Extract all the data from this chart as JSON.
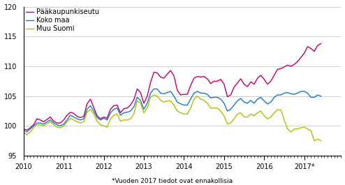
{
  "footnote": "*Vuoden 2017 tiedot ovat ennakollisia",
  "legend": [
    "Pääkaupunkiseutu",
    "Koko maa",
    "Muu Suomi"
  ],
  "colors": [
    "#c0006e",
    "#1a7abf",
    "#b0c000"
  ],
  "ylim": [
    95,
    120
  ],
  "yticks": [
    95,
    100,
    105,
    110,
    115,
    120
  ],
  "xlim_start": 2010.0,
  "xlim_end": 2017.92,
  "xtick_labels": [
    "2010",
    "2011",
    "2012",
    "2013",
    "2014",
    "2015",
    "2016",
    "2017*"
  ],
  "xtick_positions": [
    2010.0,
    2011.0,
    2012.0,
    2013.0,
    2014.0,
    2015.0,
    2016.0,
    2017.0
  ],
  "line_width": 1.0,
  "background_color": "#ffffff",
  "grid_color": "#c8c8c8",
  "paakaupunkiseutu": [
    99.5,
    99.3,
    99.7,
    100.2,
    101.2,
    101.0,
    100.7,
    101.1,
    101.5,
    100.8,
    100.5,
    100.5,
    101.0,
    101.8,
    102.3,
    102.1,
    101.6,
    101.4,
    101.6,
    103.7,
    104.5,
    103.1,
    101.7,
    101.2,
    101.5,
    101.3,
    102.8,
    103.4,
    103.5,
    102.2,
    102.9,
    103.0,
    103.5,
    104.4,
    106.2,
    105.6,
    103.8,
    105.0,
    107.3,
    109.0,
    108.9,
    108.2,
    108.0,
    108.7,
    109.3,
    108.4,
    106.0,
    105.2,
    105.3,
    105.3,
    106.8,
    108.0,
    108.3,
    108.2,
    108.3,
    107.9,
    107.1,
    107.5,
    107.5,
    107.8,
    107.0,
    104.9,
    105.2,
    106.5,
    107.2,
    107.9,
    107.0,
    106.6,
    107.4,
    107.0,
    108.0,
    108.5,
    107.8,
    107.0,
    107.5,
    108.5,
    109.5,
    109.6,
    109.9,
    110.2,
    110.0,
    110.3,
    110.8,
    111.5,
    112.2,
    113.3,
    113.0,
    112.5,
    113.5,
    113.8
  ],
  "koko_maa": [
    99.3,
    99.0,
    99.5,
    100.0,
    100.5,
    100.5,
    100.3,
    100.7,
    101.0,
    100.5,
    100.2,
    100.0,
    100.3,
    101.0,
    101.8,
    101.5,
    101.2,
    101.0,
    101.2,
    102.8,
    103.4,
    102.5,
    101.4,
    101.0,
    101.3,
    101.0,
    102.2,
    102.8,
    103.0,
    101.8,
    102.2,
    102.3,
    102.5,
    103.2,
    104.8,
    104.3,
    102.8,
    103.8,
    105.5,
    106.2,
    106.2,
    105.5,
    105.4,
    105.6,
    105.8,
    105.0,
    104.0,
    103.7,
    103.5,
    103.5,
    104.5,
    105.5,
    105.8,
    105.5,
    105.5,
    105.3,
    104.7,
    104.8,
    104.8,
    104.5,
    103.8,
    102.5,
    102.8,
    103.5,
    104.2,
    104.6,
    104.0,
    103.8,
    104.3,
    103.8,
    104.5,
    104.8,
    104.2,
    103.7,
    104.0,
    104.8,
    105.2,
    105.2,
    105.5,
    105.6,
    105.4,
    105.3,
    105.5,
    105.8,
    105.8,
    105.5,
    104.8,
    104.8,
    105.2,
    105.0
  ],
  "muu_suomi": [
    99.0,
    98.5,
    99.0,
    99.7,
    100.2,
    100.2,
    100.0,
    100.4,
    100.7,
    100.2,
    99.8,
    99.7,
    100.0,
    100.7,
    101.3,
    101.0,
    100.7,
    100.5,
    100.7,
    102.3,
    102.8,
    102.0,
    100.8,
    100.2,
    100.0,
    99.8,
    101.2,
    101.8,
    102.0,
    100.8,
    101.0,
    101.0,
    101.2,
    102.0,
    104.2,
    103.8,
    102.2,
    103.0,
    104.8,
    105.2,
    105.0,
    104.3,
    104.0,
    104.2,
    104.2,
    103.5,
    102.5,
    102.2,
    102.0,
    102.0,
    103.0,
    104.5,
    105.0,
    104.5,
    104.3,
    103.8,
    103.0,
    103.0,
    103.0,
    102.5,
    101.7,
    100.3,
    100.5,
    101.2,
    102.0,
    102.2,
    101.5,
    101.5,
    102.0,
    101.7,
    102.2,
    102.5,
    101.7,
    101.2,
    101.5,
    102.2,
    102.7,
    102.7,
    101.0,
    99.5,
    99.0,
    99.5,
    99.5,
    99.7,
    99.8,
    99.5,
    99.2,
    97.5,
    97.8,
    97.5
  ]
}
